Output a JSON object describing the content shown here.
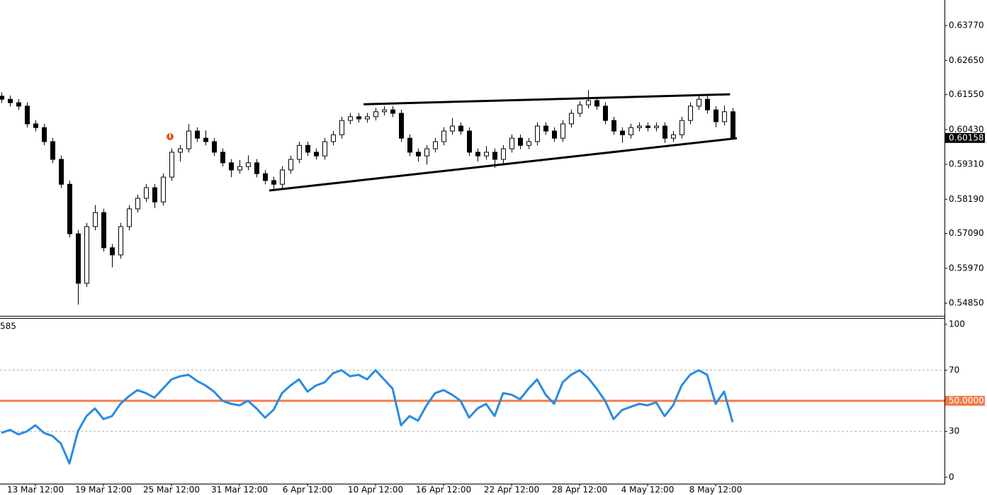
{
  "chart_data": [
    {
      "type": "candlestick",
      "categories": [
        null,
        null,
        null,
        null,
        "13 Mar 12:00",
        null,
        null,
        null,
        null,
        null,
        null,
        null,
        "19 Mar 12:00",
        null,
        null,
        null,
        null,
        null,
        null,
        null,
        "25 Mar 12:00",
        null,
        null,
        null,
        null,
        null,
        null,
        null,
        "31 Mar 12:00",
        null,
        null,
        null,
        null,
        null,
        null,
        null,
        "6 Apr 12:00",
        null,
        null,
        null,
        null,
        null,
        null,
        null,
        "10 Apr 12:00",
        null,
        null,
        null,
        null,
        null,
        null,
        null,
        "16 Apr 12:00",
        null,
        null,
        null,
        null,
        null,
        null,
        null,
        "22 Apr 12:00",
        null,
        null,
        null,
        null,
        null,
        null,
        null,
        "28 Apr 12:00",
        null,
        null,
        null,
        null,
        null,
        null,
        null,
        "4 May 12:00",
        null,
        null,
        null,
        null,
        null,
        null,
        null,
        "8 May 12:00",
        null,
        null
      ],
      "open": [
        0.615,
        0.614,
        0.6129,
        0.6118,
        0.6061,
        0.6049,
        0.6004,
        0.5947,
        0.5867,
        0.5708,
        0.5549,
        0.5731,
        0.5776,
        0.5663,
        0.564,
        0.5731,
        0.5788,
        0.5822,
        0.5856,
        0.581,
        0.589,
        0.597,
        0.5981,
        0.6038,
        0.6015,
        0.6004,
        0.597,
        0.5936,
        0.5913,
        0.5924,
        0.5936,
        0.5901,
        0.5879,
        0.5867,
        0.5913,
        0.5947,
        0.5992,
        0.597,
        0.5958,
        0.6004,
        0.6026,
        0.6072,
        0.6084,
        0.6077,
        0.6084,
        0.61,
        0.6106,
        0.6095,
        0.6015,
        0.597,
        0.5958,
        0.5981,
        0.6004,
        0.6038,
        0.6054,
        0.6038,
        0.597,
        0.5958,
        0.597,
        0.5947,
        0.5981,
        0.6015,
        0.5992,
        0.6004,
        0.6054,
        0.6038,
        0.6015,
        0.6061,
        0.6095,
        0.6122,
        0.6136,
        0.6118,
        0.6072,
        0.6038,
        0.6026,
        0.6049,
        0.6054,
        0.6049,
        0.6054,
        0.6015,
        0.6026,
        0.6072,
        0.6118,
        0.614,
        0.6106,
        0.6068,
        0.61
      ],
      "high": [
        0.6162,
        0.6152,
        0.6141,
        0.613,
        0.6073,
        0.6061,
        0.6016,
        0.5959,
        0.5879,
        0.572,
        0.5743,
        0.58,
        0.5788,
        0.5675,
        0.5743,
        0.58,
        0.5834,
        0.5868,
        0.5868,
        0.5902,
        0.5982,
        0.5993,
        0.606,
        0.605,
        0.604,
        0.6016,
        0.5982,
        0.5948,
        0.5945,
        0.596,
        0.5948,
        0.5913,
        0.5891,
        0.5925,
        0.5959,
        0.6004,
        0.6004,
        0.5982,
        0.6016,
        0.6038,
        0.6084,
        0.6096,
        0.6096,
        0.6096,
        0.6112,
        0.6118,
        0.6118,
        0.6107,
        0.6027,
        0.5982,
        0.5993,
        0.6016,
        0.605,
        0.608,
        0.6066,
        0.605,
        0.5982,
        0.599,
        0.5982,
        0.5993,
        0.6027,
        0.6027,
        0.6016,
        0.6066,
        0.6066,
        0.605,
        0.6073,
        0.6107,
        0.6134,
        0.617,
        0.6148,
        0.613,
        0.6084,
        0.605,
        0.6061,
        0.6066,
        0.6066,
        0.6066,
        0.6066,
        0.6038,
        0.6084,
        0.613,
        0.6152,
        0.6152,
        0.6118,
        0.612,
        0.6112
      ],
      "low": [
        0.6128,
        0.6117,
        0.6106,
        0.6049,
        0.6037,
        0.5992,
        0.5935,
        0.5855,
        0.5696,
        0.548,
        0.5537,
        0.5719,
        0.5651,
        0.56,
        0.5628,
        0.5719,
        0.5776,
        0.581,
        0.579,
        0.5798,
        0.5878,
        0.594,
        0.5969,
        0.6003,
        0.5992,
        0.5958,
        0.5924,
        0.589,
        0.5901,
        0.5912,
        0.5889,
        0.5867,
        0.5845,
        0.5855,
        0.5901,
        0.5935,
        0.5958,
        0.5946,
        0.5946,
        0.5992,
        0.6014,
        0.606,
        0.6065,
        0.6065,
        0.6072,
        0.6088,
        0.6083,
        0.6003,
        0.5958,
        0.594,
        0.593,
        0.5969,
        0.5992,
        0.6026,
        0.6026,
        0.5958,
        0.594,
        0.5946,
        0.592,
        0.5935,
        0.5969,
        0.598,
        0.598,
        0.5992,
        0.6026,
        0.6003,
        0.6003,
        0.6049,
        0.6083,
        0.611,
        0.6106,
        0.606,
        0.6026,
        0.6,
        0.6014,
        0.6037,
        0.6037,
        0.6037,
        0.6,
        0.6003,
        0.6014,
        0.606,
        0.6106,
        0.6094,
        0.605,
        0.6056,
        0.601
      ],
      "close": [
        0.614,
        0.6129,
        0.6118,
        0.6061,
        0.6049,
        0.6004,
        0.5947,
        0.5867,
        0.5708,
        0.5549,
        0.5731,
        0.5776,
        0.5663,
        0.564,
        0.5731,
        0.5788,
        0.5822,
        0.5856,
        0.581,
        0.589,
        0.597,
        0.5981,
        0.6038,
        0.6015,
        0.6004,
        0.597,
        0.5936,
        0.5913,
        0.5924,
        0.5936,
        0.5901,
        0.5879,
        0.5867,
        0.5913,
        0.5947,
        0.5992,
        0.597,
        0.5958,
        0.6004,
        0.6026,
        0.6072,
        0.6084,
        0.6077,
        0.6084,
        0.61,
        0.6106,
        0.6095,
        0.6015,
        0.597,
        0.5958,
        0.5981,
        0.6004,
        0.6038,
        0.6054,
        0.6038,
        0.597,
        0.5958,
        0.597,
        0.5947,
        0.5981,
        0.6015,
        0.5992,
        0.6004,
        0.6054,
        0.6038,
        0.6015,
        0.6061,
        0.6095,
        0.6122,
        0.6136,
        0.6118,
        0.6072,
        0.6038,
        0.6026,
        0.6049,
        0.6054,
        0.6049,
        0.6054,
        0.6015,
        0.6026,
        0.6072,
        0.6118,
        0.614,
        0.6106,
        0.6068,
        0.61,
        0.60158
      ],
      "ylim": [
        0.5442,
        0.6459
      ],
      "yticks": [
        {
          "value": 0.6377,
          "label": "0.63770"
        },
        {
          "value": 0.6265,
          "label": "0.62650"
        },
        {
          "value": 0.6155,
          "label": "0.61550"
        },
        {
          "value": 0.6043,
          "label": "0.60430"
        },
        {
          "value": 0.5931,
          "label": "0.59310"
        },
        {
          "value": 0.5819,
          "label": "0.58190"
        },
        {
          "value": 0.5709,
          "label": "0.57090"
        },
        {
          "value": 0.5597,
          "label": "0.55970"
        },
        {
          "value": 0.5485,
          "label": "0.54850"
        }
      ],
      "last_price": 0.60158,
      "trendlines": [
        {
          "x": [
            42.6,
            85.7
          ],
          "y": [
            0.6124,
            0.6156
          ]
        },
        {
          "x": [
            31.5,
            86.5
          ],
          "y": [
            0.5847,
            0.6015
          ]
        }
      ]
    },
    {
      "type": "line",
      "label": "585",
      "color": "#2a8be0",
      "values": [
        29,
        31,
        28,
        30,
        34,
        29,
        27,
        22,
        9,
        30,
        40,
        45,
        38,
        40,
        48,
        53,
        57,
        55,
        52,
        58,
        64,
        66,
        67,
        63,
        60,
        56,
        50,
        48,
        47,
        50,
        45,
        39,
        44,
        55,
        60,
        64,
        56,
        60,
        62,
        68,
        70,
        66,
        67,
        64,
        70,
        64,
        58,
        34,
        40,
        37,
        47,
        55,
        57,
        54,
        50,
        39,
        45,
        48,
        40,
        55,
        54,
        51,
        58,
        64,
        54,
        48,
        62,
        67,
        70,
        65,
        58,
        50,
        38,
        44,
        46,
        48,
        47,
        49,
        40,
        47,
        60,
        67,
        70,
        67,
        48,
        56,
        36
      ],
      "ylim": [
        -4.2,
        103.7
      ],
      "yticks": [
        0,
        30,
        70,
        100
      ],
      "levels": [
        30,
        70
      ],
      "level": {
        "value": 50,
        "label": "50.0000",
        "color": "#f47b4a"
      }
    }
  ]
}
